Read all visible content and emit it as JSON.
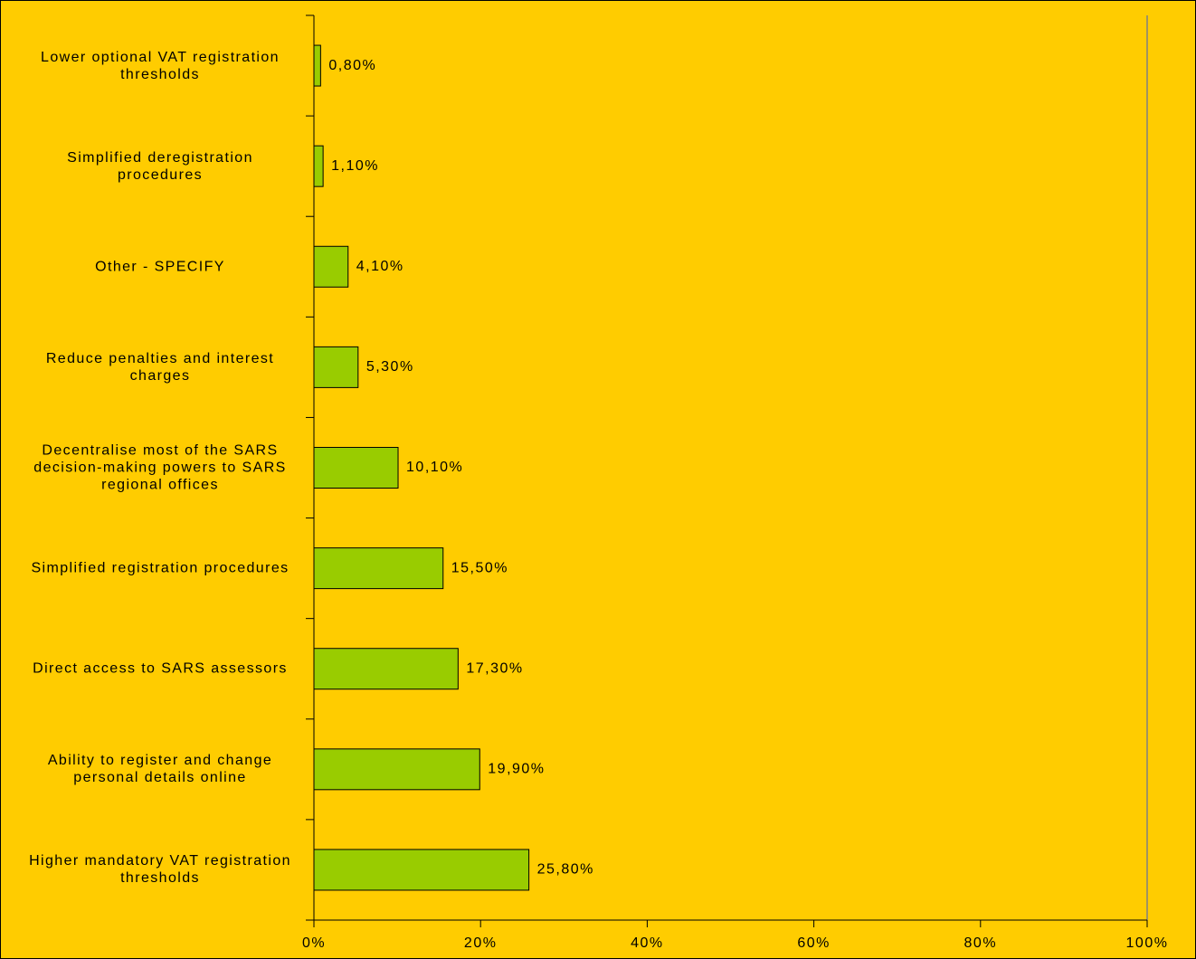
{
  "chart_data": {
    "type": "bar",
    "orientation": "horizontal",
    "categories": [
      "Lower optional VAT registration thresholds",
      "Simplified deregistration procedures",
      "Other - SPECIFY",
      "Reduce penalties and interest charges",
      "Decentralise most of the SARS decision-making powers to SARS regional offices",
      "Simplified registration procedures",
      "Direct access to SARS assessors",
      "Ability to register and change personal details online",
      "Higher mandatory VAT registration thresholds"
    ],
    "values": [
      0.8,
      1.1,
      4.1,
      5.3,
      10.1,
      15.5,
      17.3,
      19.9,
      25.8
    ],
    "value_labels": [
      "0,80%",
      "1,10%",
      "4,10%",
      "5,30%",
      "10,10%",
      "15,50%",
      "17,30%",
      "19,90%",
      "25,80%"
    ],
    "color": "#99CC00",
    "xlim": [
      0,
      100
    ],
    "xticks": [
      {
        "value": 0,
        "label": "0%"
      },
      {
        "value": 20,
        "label": "20%"
      },
      {
        "value": 40,
        "label": "40%"
      },
      {
        "value": 60,
        "label": "60%"
      },
      {
        "value": 80,
        "label": "80%"
      },
      {
        "value": 100,
        "label": "100%"
      }
    ],
    "grid": false
  }
}
